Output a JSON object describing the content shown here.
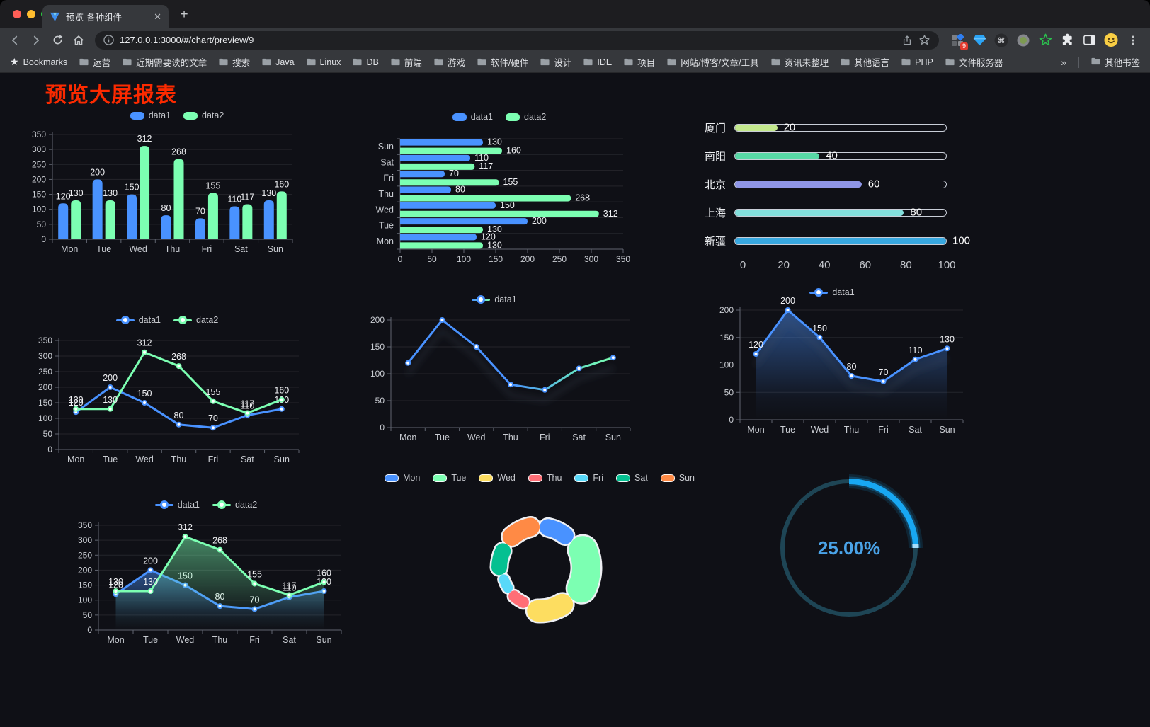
{
  "browser": {
    "tab": {
      "title": "预览-各种组件"
    },
    "url": "127.0.0.1:3000/#/chart/preview/9",
    "extensions_badge": "9",
    "bookmarks_label": "Bookmarks",
    "bookmarks": [
      "运营",
      "近期需要读的文章",
      "搜索",
      "Java",
      "Linux",
      "DB",
      "前端",
      "游戏",
      "软件/硬件",
      "设计",
      "IDE",
      "项目",
      "网站/博客/文章/工具",
      "资讯未整理",
      "其他语言",
      "PHP",
      "文件服务器"
    ],
    "bookmarks_overflow": "»",
    "other_bookmarks": "其他书签"
  },
  "page": {
    "title": "预览大屏报表",
    "title_color": "#fb2a00"
  },
  "chart_data": [
    {
      "id": "grouped-bar",
      "type": "bar",
      "categories": [
        "Mon",
        "Tue",
        "Wed",
        "Thu",
        "Fri",
        "Sat",
        "Sun"
      ],
      "series": [
        {
          "name": "data1",
          "color": "#4992ff",
          "values": [
            120,
            200,
            150,
            80,
            70,
            110,
            130
          ]
        },
        {
          "name": "data2",
          "color": "#7cffb2",
          "values": [
            130,
            130,
            312,
            268,
            155,
            117,
            160
          ]
        }
      ],
      "ylim": [
        0,
        350
      ],
      "ytick": 50,
      "legend_position": "top",
      "grid": true
    },
    {
      "id": "horizontal-bar",
      "type": "bar",
      "orientation": "horizontal",
      "categories": [
        "Mon",
        "Tue",
        "Wed",
        "Thu",
        "Fri",
        "Sat",
        "Sun"
      ],
      "display_order_top_to_bottom": [
        "Sun",
        "Sat",
        "Fri",
        "Thu",
        "Wed",
        "Tue",
        "Mon"
      ],
      "series": [
        {
          "name": "data1",
          "color": "#4992ff",
          "values": [
            120,
            200,
            150,
            80,
            70,
            110,
            130
          ]
        },
        {
          "name": "data2",
          "color": "#7cffb2",
          "values": [
            130,
            130,
            312,
            268,
            155,
            117,
            160
          ]
        }
      ],
      "xlim": [
        0,
        350
      ],
      "xtick": 50,
      "legend_position": "top"
    },
    {
      "id": "city-progress",
      "type": "bar",
      "style": "capsule-progress",
      "rows": [
        {
          "label": "厦门",
          "value": 20,
          "color": "#c3e88d"
        },
        {
          "label": "南阳",
          "value": 40,
          "color": "#58d9a6"
        },
        {
          "label": "北京",
          "value": 60,
          "color": "#8f96e8"
        },
        {
          "label": "上海",
          "value": 80,
          "color": "#83dfdc"
        },
        {
          "label": "新疆",
          "value": 100,
          "color": "#38a8e0"
        }
      ],
      "xlim": [
        0,
        100
      ],
      "xticks": [
        0,
        20,
        40,
        60,
        80,
        100
      ]
    },
    {
      "id": "multi-line",
      "type": "line",
      "categories": [
        "Mon",
        "Tue",
        "Wed",
        "Thu",
        "Fri",
        "Sat",
        "Sun"
      ],
      "series": [
        {
          "name": "data1",
          "color": "#4992ff",
          "values": [
            120,
            200,
            150,
            80,
            70,
            110,
            130
          ]
        },
        {
          "name": "data2",
          "color": "#7cffb2",
          "values": [
            130,
            130,
            312,
            268,
            155,
            117,
            160
          ]
        }
      ],
      "ylim": [
        0,
        350
      ],
      "ytick": 50,
      "point_labels": true,
      "legend_position": "top"
    },
    {
      "id": "gradient-line",
      "type": "line",
      "categories": [
        "Mon",
        "Tue",
        "Wed",
        "Thu",
        "Fri",
        "Sat",
        "Sun"
      ],
      "series": [
        {
          "name": "data1",
          "color": "#4992ff",
          "color_end": "#7cffb2",
          "gradient": true,
          "shadow": true,
          "values": [
            120,
            200,
            150,
            80,
            70,
            110,
            130
          ]
        }
      ],
      "ylim": [
        0,
        200
      ],
      "ytick": 50,
      "point_labels": false,
      "legend_position": "top"
    },
    {
      "id": "area-line",
      "type": "area",
      "categories": [
        "Mon",
        "Tue",
        "Wed",
        "Thu",
        "Fri",
        "Sat",
        "Sun"
      ],
      "series": [
        {
          "name": "data1",
          "color": "#4992ff",
          "area": true,
          "shadow": true,
          "values": [
            120,
            200,
            150,
            80,
            70,
            110,
            130
          ]
        }
      ],
      "ylim": [
        0,
        200
      ],
      "ytick": 50,
      "point_labels": true,
      "legend_position": "top"
    },
    {
      "id": "double-area-line",
      "type": "area",
      "categories": [
        "Mon",
        "Tue",
        "Wed",
        "Thu",
        "Fri",
        "Sat",
        "Sun"
      ],
      "series": [
        {
          "name": "data1",
          "color": "#4992ff",
          "area": true,
          "values": [
            120,
            200,
            150,
            80,
            70,
            110,
            130
          ]
        },
        {
          "name": "data2",
          "color": "#7cffb2",
          "area": true,
          "values": [
            130,
            130,
            312,
            268,
            155,
            117,
            160
          ]
        }
      ],
      "ylim": [
        0,
        350
      ],
      "ytick": 50,
      "point_labels": true,
      "legend_position": "top"
    },
    {
      "id": "rose-pie",
      "type": "pie",
      "style": "rose-donut-rounded",
      "slices": [
        {
          "label": "Mon",
          "value": 120,
          "color": "#4992ff"
        },
        {
          "label": "Tue",
          "value": 200,
          "color": "#7cffb2"
        },
        {
          "label": "Wed",
          "value": 150,
          "color": "#fddd60"
        },
        {
          "label": "Thu",
          "value": 80,
          "color": "#ff6e76"
        },
        {
          "label": "Fri",
          "value": 70,
          "color": "#58d9f9"
        },
        {
          "label": "Sat",
          "value": 110,
          "color": "#05c091"
        },
        {
          "label": "Sun",
          "value": 130,
          "color": "#ff8a45"
        }
      ],
      "legend_position": "top"
    },
    {
      "id": "progress-gauge",
      "type": "gauge",
      "percent": 25,
      "label": "25.00%",
      "color": "#18a7f2",
      "track_color": "#1e4555",
      "text_color": "#4aa3e8"
    }
  ]
}
